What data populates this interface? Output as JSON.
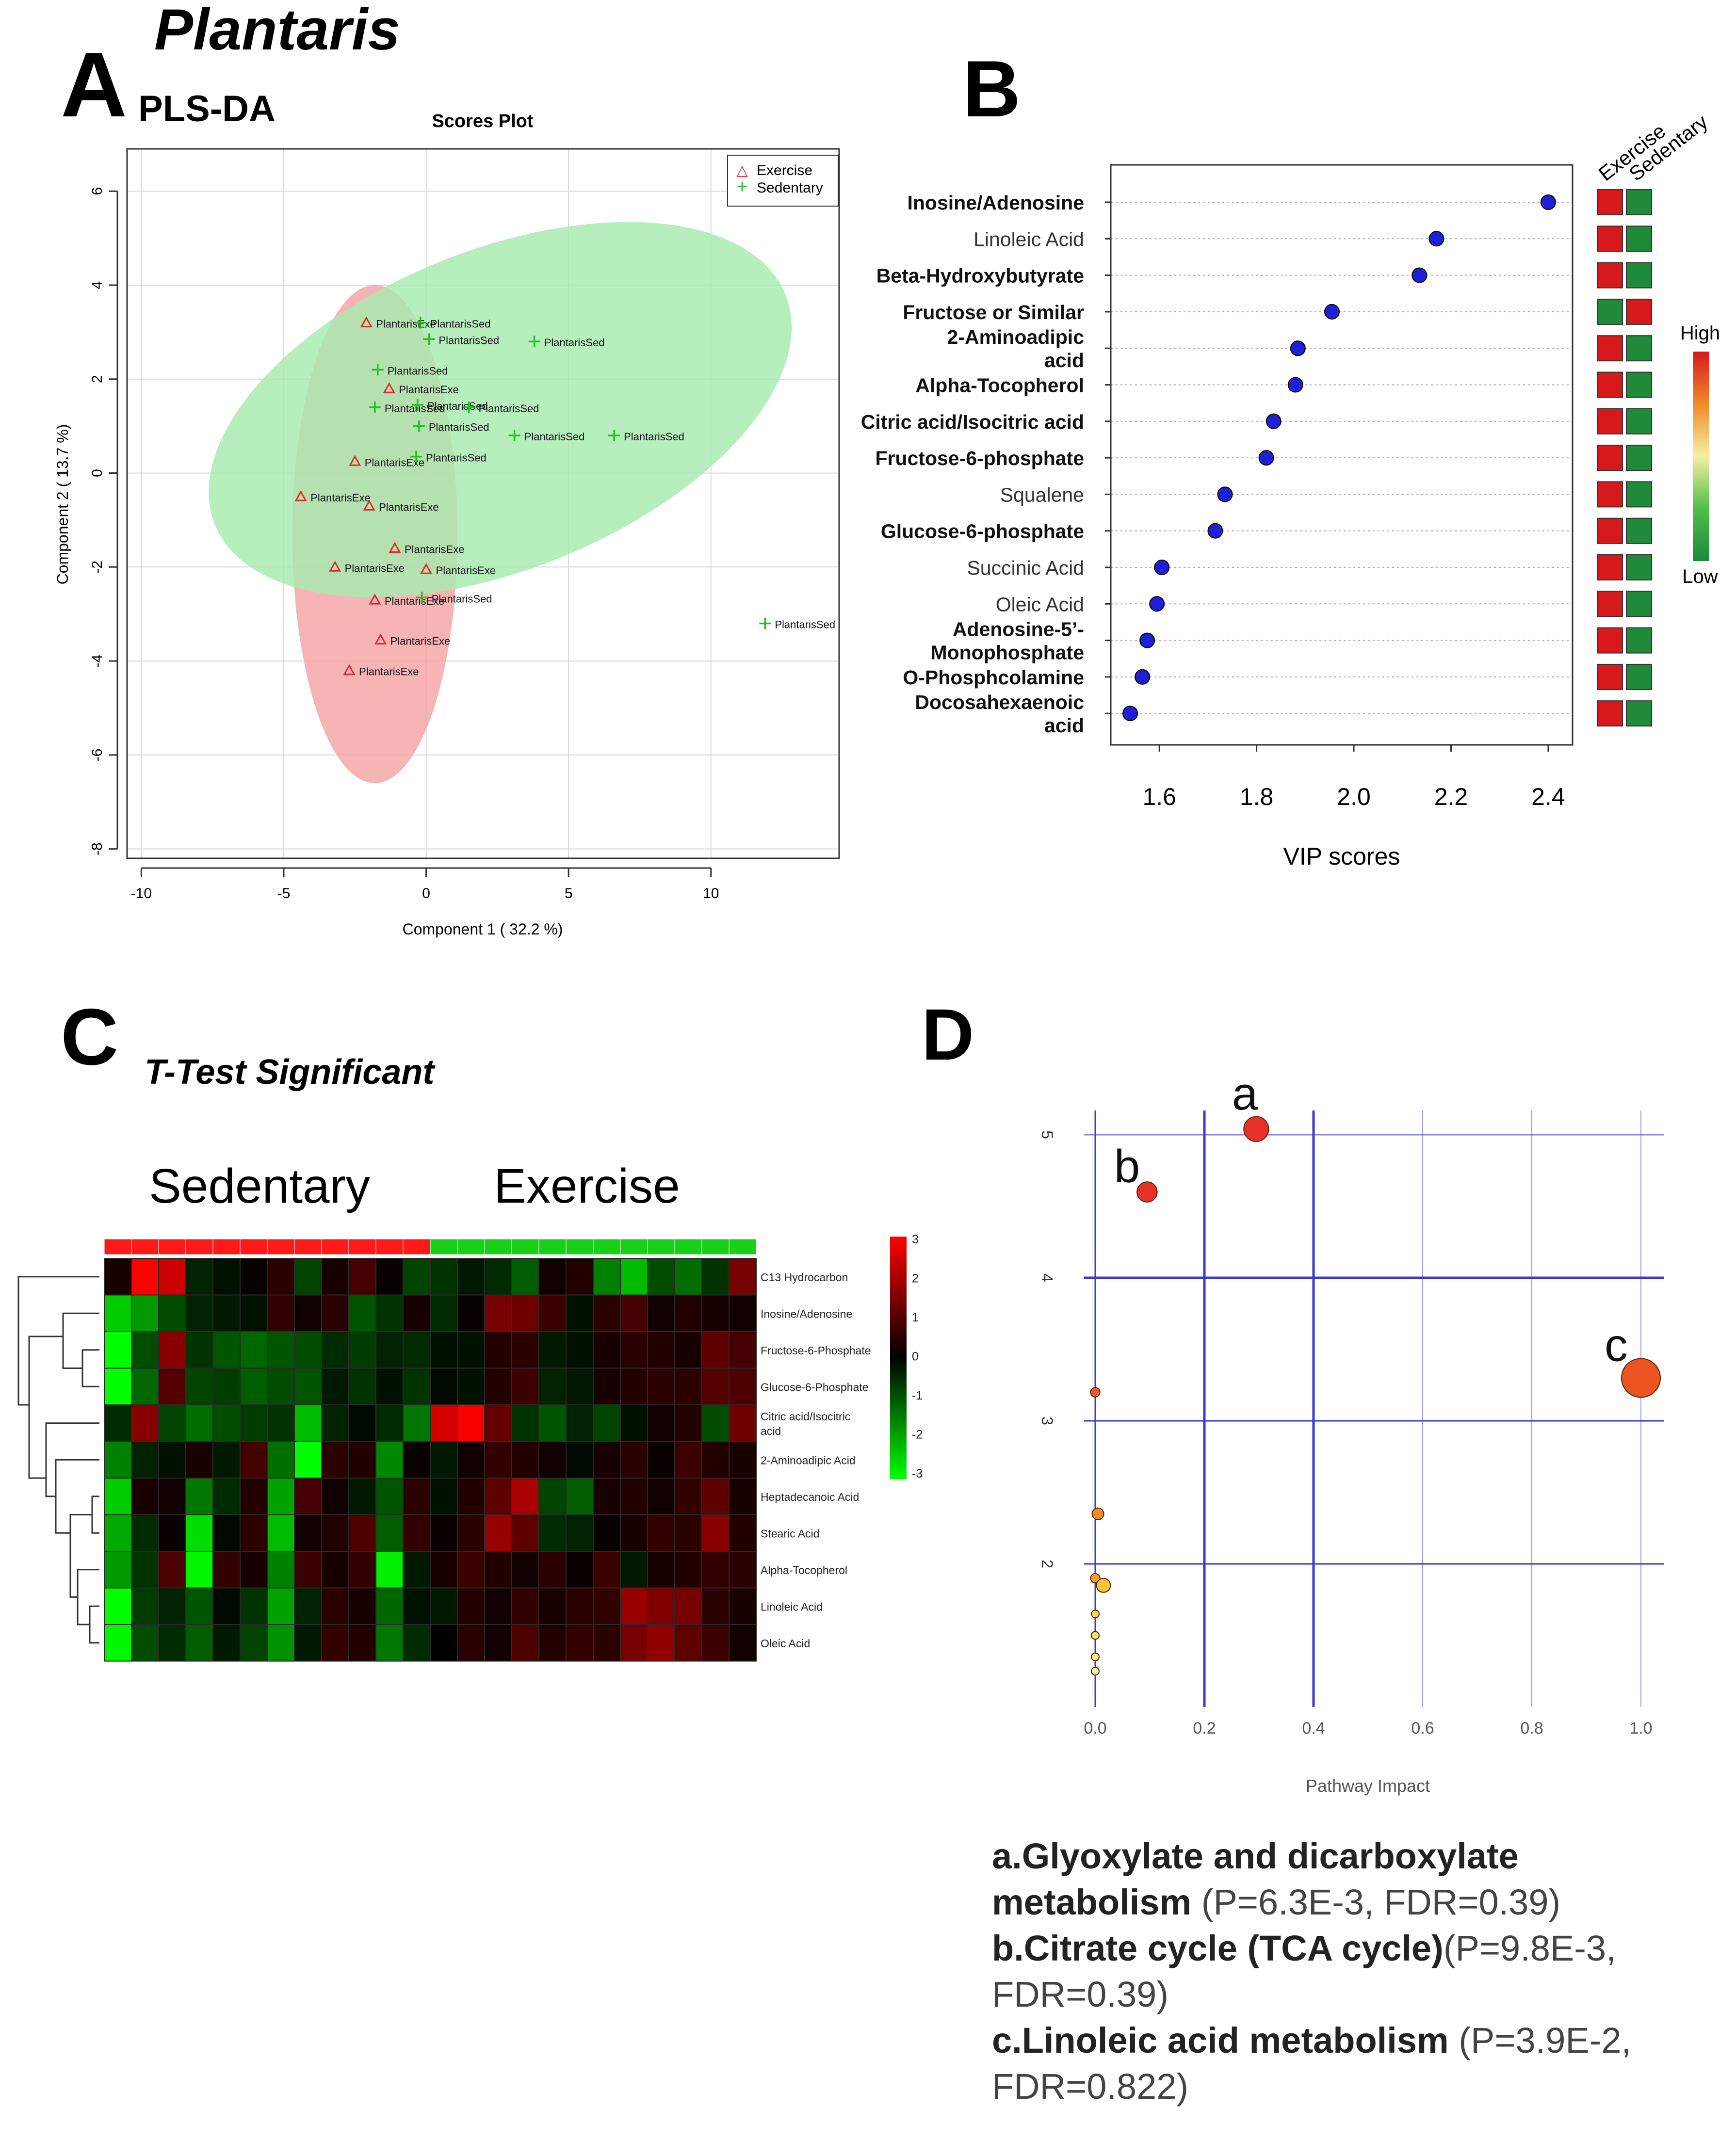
{
  "figure": {
    "tissue_title": "Plantaris",
    "panel_labels": [
      "A",
      "B",
      "C",
      "D"
    ]
  },
  "panel_a": {
    "method": "PLS-DA",
    "title": "Scores Plot",
    "xlabel": "Component 1 ( 32.2 %)",
    "ylabel": "Component 2 ( 13.7 %)",
    "xticks": [
      -10,
      -5,
      0,
      5,
      10
    ],
    "yticks": [
      6,
      4,
      2,
      0,
      -2,
      -4,
      -6,
      -8
    ],
    "legend": [
      {
        "name": "Exercise",
        "symbol": "△",
        "color": "#e8262d"
      },
      {
        "name": "Sedentary",
        "symbol": "+",
        "color": "#1fc21f"
      }
    ]
  },
  "panel_b": {
    "xlabel": "VIP scores",
    "xticks": [
      "1.6",
      "1.8",
      "2.0",
      "2.2",
      "2.4"
    ],
    "groups": [
      "Exercise",
      "Sedentary"
    ],
    "scale_high": "High",
    "scale_low": "Low"
  },
  "panel_c": {
    "title": "T-Test Significant",
    "group_labels": [
      "Sedentary",
      "Exercise"
    ],
    "scale_ticks": [
      "3",
      "2",
      "1",
      "0",
      "-1",
      "-2",
      "-3"
    ]
  },
  "panel_d": {
    "xlabel": "Pathway Impact",
    "xticks": [
      "0.0",
      "0.2",
      "0.4",
      "0.6",
      "0.8",
      "1.0"
    ],
    "yticks": [
      "5",
      "4",
      "3",
      "2"
    ],
    "point_labels": [
      "a",
      "b",
      "c"
    ],
    "pathways": [
      {
        "letter": "a.",
        "name_line1": "Glyoxylate and dicarboxylate",
        "name_line2": "metabolism",
        "stats": "(P=6.3E-3, FDR=0.39)"
      },
      {
        "letter": "b.",
        "name_line1": "Citrate cycle (TCA cycle)",
        "stats_line1": "(P=9.8E-3,",
        "stats_line2": "FDR=0.39)"
      },
      {
        "letter": "c.",
        "name_line1": "Linoleic  acid metabolism",
        "stats_line1": "(P=3.9E-2,",
        "stats_line2": "FDR=0.822)"
      }
    ]
  },
  "colors": {
    "exercise": "#e8262d",
    "sedentary": "#1fc21f",
    "exercise_ellipse": "#f4a3a3",
    "sedentary_ellipse": "#a6eab0",
    "vip_point": "#1f1fd6",
    "pathway_grid": "#3a3ad0"
  },
  "chart_data": [
    {
      "type": "scatter",
      "title": "Scores Plot",
      "xlabel": "Component 1 ( 32.2 %)",
      "ylabel": "Component 2 ( 13.7 %)",
      "xlim": [
        -10.5,
        14.5
      ],
      "ylim": [
        -8.2,
        6.9
      ],
      "series": [
        {
          "name": "Exercise",
          "points": [
            {
              "x": -2.1,
              "y": 3.2,
              "label": "PlantarisExe"
            },
            {
              "x": -1.3,
              "y": 1.8,
              "label": "PlantarisExe"
            },
            {
              "x": -2.5,
              "y": 0.25,
              "label": "PlantarisExe"
            },
            {
              "x": -4.4,
              "y": -0.5,
              "label": "PlantarisExe"
            },
            {
              "x": -2.0,
              "y": -0.7,
              "label": "PlantarisExe"
            },
            {
              "x": -1.1,
              "y": -1.6,
              "label": "PlantarisExe"
            },
            {
              "x": -3.2,
              "y": -2.0,
              "label": "PlantarisExe"
            },
            {
              "x": 0.0,
              "y": -2.05,
              "label": "PlantarisExe"
            },
            {
              "x": -1.8,
              "y": -2.7,
              "label": "PlantarisExe"
            },
            {
              "x": -1.6,
              "y": -3.55,
              "label": "PlantarisExe"
            },
            {
              "x": -2.7,
              "y": -4.2,
              "label": "PlantarisExe"
            }
          ]
        },
        {
          "name": "Sedentary",
          "points": [
            {
              "x": -0.2,
              "y": 3.2,
              "label": "PlantarisSed"
            },
            {
              "x": 0.1,
              "y": 2.85,
              "label": "PlantarisSed"
            },
            {
              "x": 3.8,
              "y": 2.8,
              "label": "PlantarisSed"
            },
            {
              "x": -1.7,
              "y": 2.2,
              "label": "PlantarisSed"
            },
            {
              "x": -1.8,
              "y": 1.4,
              "label": "PlantarisSed"
            },
            {
              "x": -0.3,
              "y": 1.45,
              "label": "PlantarisSed"
            },
            {
              "x": 1.5,
              "y": 1.4,
              "label": "PlantarisSed"
            },
            {
              "x": -0.25,
              "y": 1.0,
              "label": "PlantarisSed"
            },
            {
              "x": 3.1,
              "y": 0.8,
              "label": "PlantarisSed"
            },
            {
              "x": 6.6,
              "y": 0.8,
              "label": "PlantarisSed"
            },
            {
              "x": -0.35,
              "y": 0.35,
              "label": "PlantarisSed"
            },
            {
              "x": -0.15,
              "y": -2.65,
              "label": "PlantarisSed"
            },
            {
              "x": 11.9,
              "y": -3.2,
              "label": "PlantarisSed"
            }
          ]
        }
      ],
      "ellipses": [
        {
          "group": "Exercise",
          "cx": -1.8,
          "cy": -1.3,
          "rx": 2.9,
          "ry": 5.3,
          "angle_deg": 0
        },
        {
          "group": "Sedentary",
          "cx": 2.6,
          "cy": 1.35,
          "rx": 10.8,
          "ry": 3.4,
          "angle_deg": -22
        }
      ],
      "legend_position": "top-right",
      "grid": true
    },
    {
      "type": "scatter",
      "title": "",
      "xlabel": "VIP scores",
      "xlim": [
        1.5,
        2.45
      ],
      "categories": [
        "Inosine/Adenosine",
        "Linoleic Acid",
        "Beta-Hydroxybutyrate",
        "Fructose or Similar",
        "2-Aminoadipic acid",
        "Alpha-Tocopherol",
        "Citric acid/Isocitric acid",
        "Fructose-6-phosphate",
        "Squalene",
        "Glucose-6-phosphate",
        "Succinic Acid",
        "Oleic Acid",
        "Adenosine-5'-Monophosphate",
        "O-Phosphcolamine",
        "Docosahexaenoic acid"
      ],
      "values": [
        2.4,
        2.17,
        2.135,
        1.955,
        1.885,
        1.88,
        1.835,
        1.82,
        1.735,
        1.715,
        1.605,
        1.595,
        1.575,
        1.565,
        1.54
      ],
      "group_heat": [
        [
          "high",
          "low"
        ],
        [
          "high",
          "low"
        ],
        [
          "high",
          "low"
        ],
        [
          "low",
          "high"
        ],
        [
          "high",
          "low"
        ],
        [
          "high",
          "low"
        ],
        [
          "high",
          "low"
        ],
        [
          "high",
          "low"
        ],
        [
          "high",
          "low"
        ],
        [
          "high",
          "low"
        ],
        [
          "high",
          "low"
        ],
        [
          "high",
          "low"
        ],
        [
          "high",
          "low"
        ],
        [
          "high",
          "low"
        ],
        [
          "high",
          "low"
        ]
      ],
      "groups": [
        "Exercise",
        "Sedentary"
      ],
      "grid": true
    },
    {
      "type": "heatmap",
      "title": "T-Test Significant",
      "rows": [
        "C13 Hydrocarbon",
        "Inosine/Adenosine",
        "Fructose-6-Phosphate",
        "Glucose-6-Phosphate",
        "Citric acid/Isocitric acid",
        "2-Aminoadipic Acid",
        "Heptadecanoic Acid",
        "Stearic Acid",
        "Alpha-Tocopherol",
        "Linoleic Acid",
        "Oleic Acid"
      ],
      "column_groups": [
        "Sedentary",
        "Sedentary",
        "Sedentary",
        "Sedentary",
        "Sedentary",
        "Sedentary",
        "Sedentary",
        "Sedentary",
        "Sedentary",
        "Sedentary",
        "Sedentary",
        "Sedentary",
        "Exercise",
        "Exercise",
        "Exercise",
        "Exercise",
        "Exercise",
        "Exercise",
        "Exercise",
        "Exercise",
        "Exercise",
        "Exercise",
        "Exercise",
        "Exercise"
      ],
      "scale": [
        -3,
        3
      ],
      "values": [
        [
          0.3,
          3,
          2.4,
          -0.4,
          -0.2,
          0.1,
          0.5,
          -0.8,
          0.3,
          0.8,
          0.1,
          -0.8,
          -0.6,
          -0.3,
          -0.5,
          -1.1,
          0.2,
          0.4,
          -1.5,
          -2.2,
          -0.9,
          -1.3,
          -0.6,
          1.4
        ],
        [
          -2.4,
          -1.8,
          -0.9,
          -0.4,
          -0.3,
          -0.2,
          0.6,
          0.2,
          0.5,
          -1.0,
          -0.6,
          0.3,
          -0.5,
          0.1,
          1.4,
          1.3,
          0.7,
          -0.2,
          0.5,
          0.8,
          0.2,
          0.4,
          0.3,
          0.2
        ],
        [
          -3,
          -0.9,
          1.6,
          -0.6,
          -1.0,
          -1.2,
          -1.0,
          -0.9,
          -0.5,
          -0.7,
          -0.4,
          -0.5,
          -0.2,
          -0.2,
          0.4,
          0.5,
          -0.3,
          -0.2,
          0.3,
          0.5,
          0.4,
          0.3,
          1.1,
          0.8
        ],
        [
          -3,
          -1.2,
          1.0,
          -0.8,
          -0.7,
          -1.1,
          -0.9,
          -1.0,
          -0.3,
          -0.6,
          -0.2,
          -0.6,
          -0.1,
          -0.2,
          0.4,
          0.7,
          -0.4,
          -0.3,
          0.3,
          0.4,
          0.5,
          0.5,
          1.0,
          0.9
        ],
        [
          -0.5,
          1.6,
          -0.8,
          -1.3,
          -0.9,
          -0.7,
          -0.6,
          -2.2,
          -0.4,
          -0.1,
          -0.5,
          -1.4,
          2.5,
          2.9,
          1.2,
          -0.6,
          -1.0,
          -0.4,
          -0.8,
          -0.2,
          0.2,
          0.4,
          -0.9,
          1.3
        ],
        [
          -1.5,
          -0.4,
          -0.2,
          0.3,
          -0.3,
          0.8,
          -1.3,
          -3,
          0.5,
          0.4,
          -1.6,
          0.1,
          -0.3,
          0.2,
          0.6,
          0.4,
          0.2,
          -0.1,
          0.3,
          0.5,
          0.1,
          0.7,
          0.4,
          0.3
        ],
        [
          -2.4,
          0.3,
          0.2,
          -1.4,
          -0.5,
          0.4,
          -1.9,
          0.8,
          0.2,
          -0.3,
          -1.0,
          0.5,
          -0.2,
          0.4,
          1.1,
          2.0,
          -0.8,
          -1.1,
          0.3,
          0.4,
          0.2,
          0.6,
          1.1,
          0.3
        ],
        [
          -2.0,
          -0.5,
          0.1,
          -2.6,
          -0.1,
          0.5,
          -2.2,
          0.2,
          0.4,
          0.9,
          -1.1,
          0.6,
          0.1,
          0.5,
          1.8,
          1.1,
          -0.5,
          -0.4,
          0.1,
          0.3,
          0.6,
          0.5,
          1.6,
          0.4
        ],
        [
          -1.8,
          -0.6,
          0.9,
          -2.9,
          0.6,
          0.3,
          -1.5,
          0.7,
          0.3,
          0.6,
          -2.8,
          -0.3,
          0.3,
          0.7,
          0.4,
          0.2,
          0.5,
          0.1,
          0.7,
          -0.3,
          0.3,
          0.4,
          0.6,
          0.5
        ],
        [
          -3,
          -0.7,
          -0.4,
          -1.0,
          -0.1,
          -0.6,
          -1.9,
          -0.4,
          0.5,
          0.3,
          -1.2,
          -0.2,
          -0.3,
          0.4,
          0.2,
          0.6,
          0.3,
          0.5,
          0.6,
          1.8,
          1.5,
          1.4,
          0.5,
          0.3
        ],
        [
          -2.9,
          -0.9,
          -0.5,
          -1.1,
          -0.3,
          -0.8,
          -1.7,
          -0.3,
          0.6,
          0.4,
          -1.4,
          -0.5,
          0.0,
          0.5,
          0.2,
          0.9,
          0.4,
          0.6,
          0.5,
          1.4,
          1.7,
          1.1,
          0.7,
          0.2
        ]
      ]
    },
    {
      "type": "scatter",
      "title": "",
      "xlabel": "Pathway Impact",
      "ylabel": "",
      "xlim": [
        -0.01,
        1.04
      ],
      "ylim": [
        1.2,
        5.25
      ],
      "points": [
        {
          "x": 0.295,
          "y": 5.04,
          "label": "a",
          "size": 3.2,
          "color": "#e8312a"
        },
        {
          "x": 0.095,
          "y": 4.6,
          "label": "b",
          "size": 2.6,
          "color": "#e8312a"
        },
        {
          "x": 1.0,
          "y": 3.3,
          "label": "c",
          "size": 5.0,
          "color": "#ec5522"
        },
        {
          "x": 0.0,
          "y": 3.2,
          "label": "",
          "size": 1.2,
          "color": "#ed5e2a"
        },
        {
          "x": 0.005,
          "y": 2.35,
          "label": "",
          "size": 1.5,
          "color": "#f08a2a"
        },
        {
          "x": 0.0,
          "y": 1.9,
          "label": "",
          "size": 1.2,
          "color": "#f2a22e"
        },
        {
          "x": 0.015,
          "y": 1.85,
          "label": "",
          "size": 1.8,
          "color": "#f5c43a"
        },
        {
          "x": 0.0,
          "y": 1.65,
          "label": "",
          "size": 1.0,
          "color": "#f6dc56"
        },
        {
          "x": 0.0,
          "y": 1.5,
          "label": "",
          "size": 1.0,
          "color": "#f7e766"
        },
        {
          "x": 0.0,
          "y": 1.35,
          "label": "",
          "size": 1.0,
          "color": "#f8ef7c"
        },
        {
          "x": 0.0,
          "y": 1.25,
          "label": "",
          "size": 1.0,
          "color": "#fbf6a8"
        }
      ],
      "grid": true
    }
  ]
}
